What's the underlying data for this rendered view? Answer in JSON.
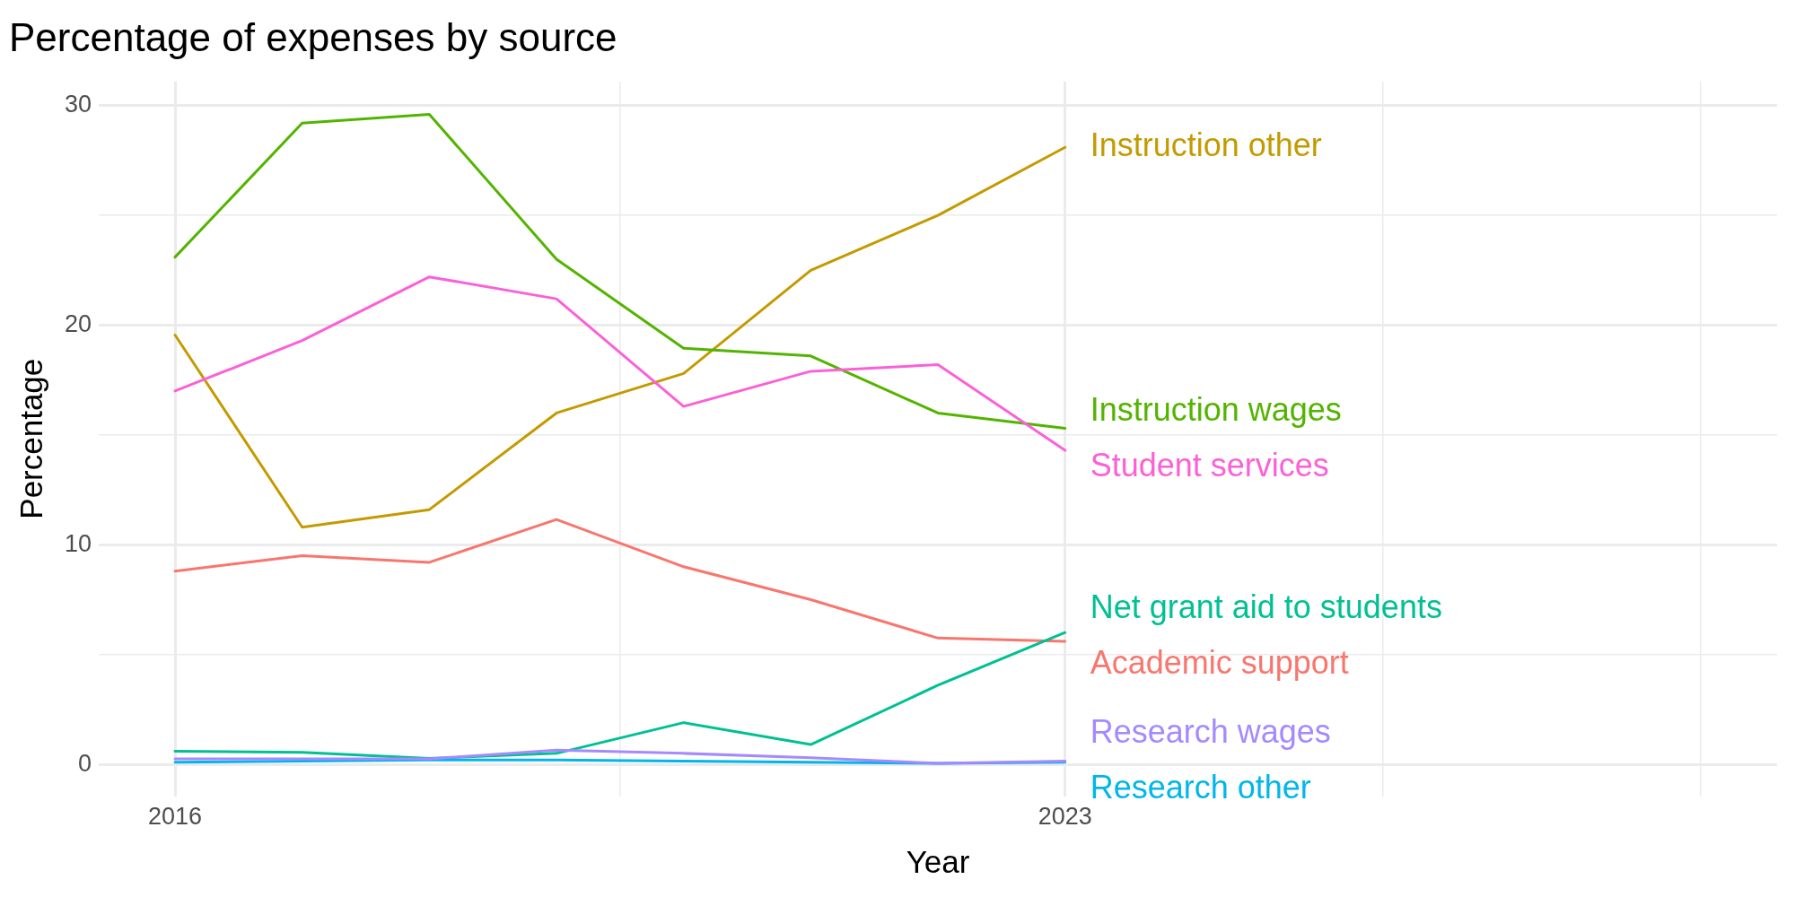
{
  "chart_data": {
    "type": "line",
    "title": "Percentage of expenses by source",
    "xlabel": "Year",
    "ylabel": "Percentage",
    "x": [
      2016,
      2017,
      2018,
      2019,
      2020,
      2021,
      2022,
      2023
    ],
    "xlim": [
      2015.4,
      2028.6
    ],
    "xticks": [
      2016,
      {
        "value": 2019.5,
        "label": null
      },
      2023,
      {
        "value": 2025.5,
        "label": null
      },
      {
        "value": 2028,
        "label": null
      }
    ],
    "ylim": [
      -1.45,
      31.1
    ],
    "yticks": [
      0,
      {
        "value": 5,
        "label": null
      },
      10,
      {
        "value": 15,
        "label": null
      },
      20,
      {
        "value": 25,
        "label": null
      },
      30
    ],
    "grid": true,
    "legend": false,
    "marker": "none",
    "line_style": "solid",
    "series": [
      {
        "name": "Academic support",
        "color": "#f8766d",
        "values": [
          8.8,
          9.5,
          9.2,
          11.15,
          9.0,
          7.5,
          5.75,
          5.6
        ]
      },
      {
        "name": "Instruction other",
        "color": "#c49a00",
        "values": [
          19.55,
          10.8,
          11.6,
          16.0,
          17.8,
          22.5,
          25.0,
          28.1
        ]
      },
      {
        "name": "Instruction wages",
        "color": "#53b400",
        "values": [
          23.1,
          29.2,
          29.6,
          23.0,
          18.95,
          18.6,
          16.0,
          15.3
        ]
      },
      {
        "name": "Net grant aid to students",
        "color": "#00c094",
        "values": [
          0.6,
          0.55,
          0.27,
          0.5,
          1.9,
          0.9,
          3.6,
          6.0
        ]
      },
      {
        "name": "Research other",
        "color": "#00b6eb",
        "values": [
          0.1,
          0.15,
          0.2,
          0.2,
          0.15,
          0.1,
          0.05,
          0.1
        ]
      },
      {
        "name": "Research wages",
        "color": "#a58aff",
        "values": [
          0.25,
          0.25,
          0.25,
          0.65,
          0.5,
          0.3,
          0.05,
          0.15
        ]
      },
      {
        "name": "Student services",
        "color": "#fb61d7",
        "values": [
          17.0,
          19.3,
          22.2,
          21.2,
          16.3,
          17.9,
          18.2,
          14.3
        ]
      }
    ]
  }
}
